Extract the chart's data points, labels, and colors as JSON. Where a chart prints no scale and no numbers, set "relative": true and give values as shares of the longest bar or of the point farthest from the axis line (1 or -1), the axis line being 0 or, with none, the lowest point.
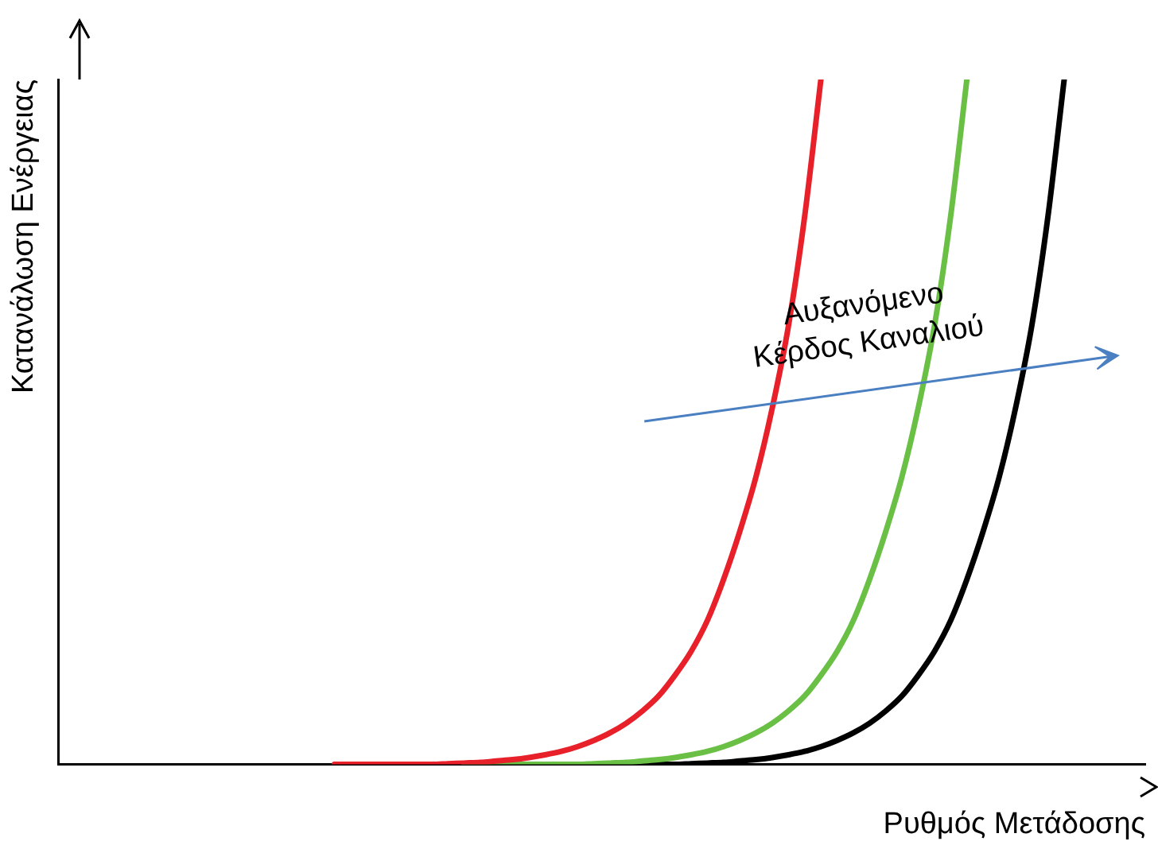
{
  "chart_data": {
    "type": "line",
    "relative": true,
    "xlabel": "Ρυθμός Μετάδοσης",
    "ylabel": "Κατανάλωση Ενέργειας",
    "annotations": [
      "Αυξανόμενο Κέρδος Καναλιού"
    ],
    "grid": false,
    "legend": false,
    "marker": "none",
    "line_style": "solid",
    "categories": [
      null,
      null,
      null,
      null,
      null,
      null,
      null,
      null,
      null,
      null,
      null,
      null,
      null,
      null,
      null,
      null,
      null,
      null,
      null,
      null,
      null,
      null,
      null,
      null,
      null,
      null,
      null,
      null,
      null,
      null,
      null,
      null,
      null,
      null,
      null,
      null,
      null,
      null,
      null,
      null,
      null,
      null,
      null,
      null,
      null,
      null,
      null,
      null,
      null,
      null,
      null,
      null,
      null,
      null,
      null,
      null,
      null,
      null,
      null,
      null,
      null,
      null,
      null,
      null,
      null,
      null,
      null,
      null
    ],
    "series": [
      {
        "color": "#e8202a",
        "values": [
          null,
          null,
          null,
          null,
          null,
          null,
          null,
          null,
          null,
          null,
          null,
          null,
          null,
          null,
          null,
          null,
          null,
          0,
          0,
          0,
          0,
          0,
          0,
          0,
          0.001,
          0.002,
          0.003,
          0.005,
          0.007,
          0.01,
          0.014,
          0.019,
          0.026,
          0.035,
          0.046,
          0.06,
          0.078,
          0.1,
          0.13,
          0.165,
          0.21,
          0.27,
          0.34,
          0.42,
          0.52,
          0.64,
          0.8,
          1,
          null,
          null,
          null,
          null,
          null,
          null,
          null,
          null,
          null,
          null,
          null,
          null,
          null,
          null,
          null,
          null,
          null,
          null,
          null,
          null
        ]
      },
      {
        "color": "#6abf45",
        "values": [
          null,
          null,
          null,
          null,
          null,
          null,
          null,
          null,
          null,
          null,
          null,
          null,
          null,
          null,
          null,
          null,
          null,
          null,
          null,
          null,
          null,
          null,
          null,
          null,
          null,
          0,
          0,
          0,
          0,
          0,
          0,
          0,
          0,
          0.001,
          0.002,
          0.003,
          0.005,
          0.007,
          0.01,
          0.014,
          0.019,
          0.026,
          0.035,
          0.046,
          0.06,
          0.078,
          0.1,
          0.13,
          0.165,
          0.21,
          0.27,
          0.34,
          0.42,
          0.52,
          0.64,
          0.8,
          1,
          null,
          null,
          null,
          null,
          null,
          null,
          null,
          null,
          null,
          null,
          null
        ]
      },
      {
        "color": "#000000",
        "values": [
          null,
          null,
          null,
          null,
          null,
          null,
          null,
          null,
          null,
          null,
          null,
          null,
          null,
          null,
          null,
          null,
          null,
          null,
          null,
          null,
          null,
          null,
          null,
          null,
          null,
          null,
          null,
          null,
          null,
          null,
          0,
          0,
          0,
          0,
          0,
          0,
          0,
          0,
          0,
          0.001,
          0.002,
          0.003,
          0.005,
          0.007,
          0.01,
          0.014,
          0.019,
          0.026,
          0.035,
          0.046,
          0.06,
          0.078,
          0.1,
          0.13,
          0.165,
          0.21,
          0.27,
          0.34,
          0.42,
          0.52,
          0.64,
          0.8,
          1,
          null,
          null,
          null,
          null,
          null
        ]
      }
    ]
  }
}
